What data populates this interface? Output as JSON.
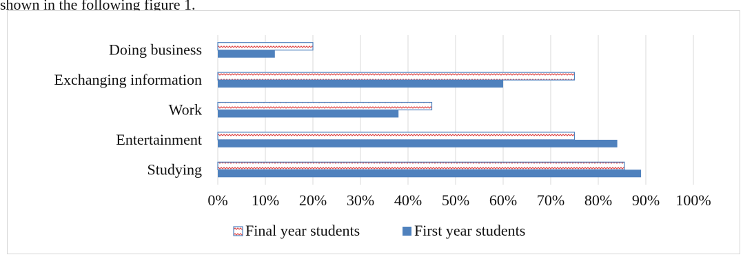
{
  "caption_text": "shown in the following figure 1.",
  "chart_data": {
    "type": "bar",
    "orientation": "horizontal",
    "categories": [
      "Doing business",
      "Exchanging information",
      "Work",
      "Entertainment",
      "Studying"
    ],
    "series": [
      {
        "name": "Final year students",
        "values": [
          20,
          75,
          45,
          75,
          85.5
        ],
        "color": "#4f81bd",
        "pattern": "red zig-zag on white"
      },
      {
        "name": "First year students",
        "values": [
          12,
          60,
          38,
          84,
          89
        ],
        "color": "#4f81bd"
      }
    ],
    "xticks": [
      "0%",
      "10%",
      "20%",
      "30%",
      "40%",
      "50%",
      "60%",
      "70%",
      "80%",
      "90%",
      "100%"
    ],
    "xlim": [
      0,
      100
    ],
    "grid": true,
    "legend": "bottom"
  }
}
